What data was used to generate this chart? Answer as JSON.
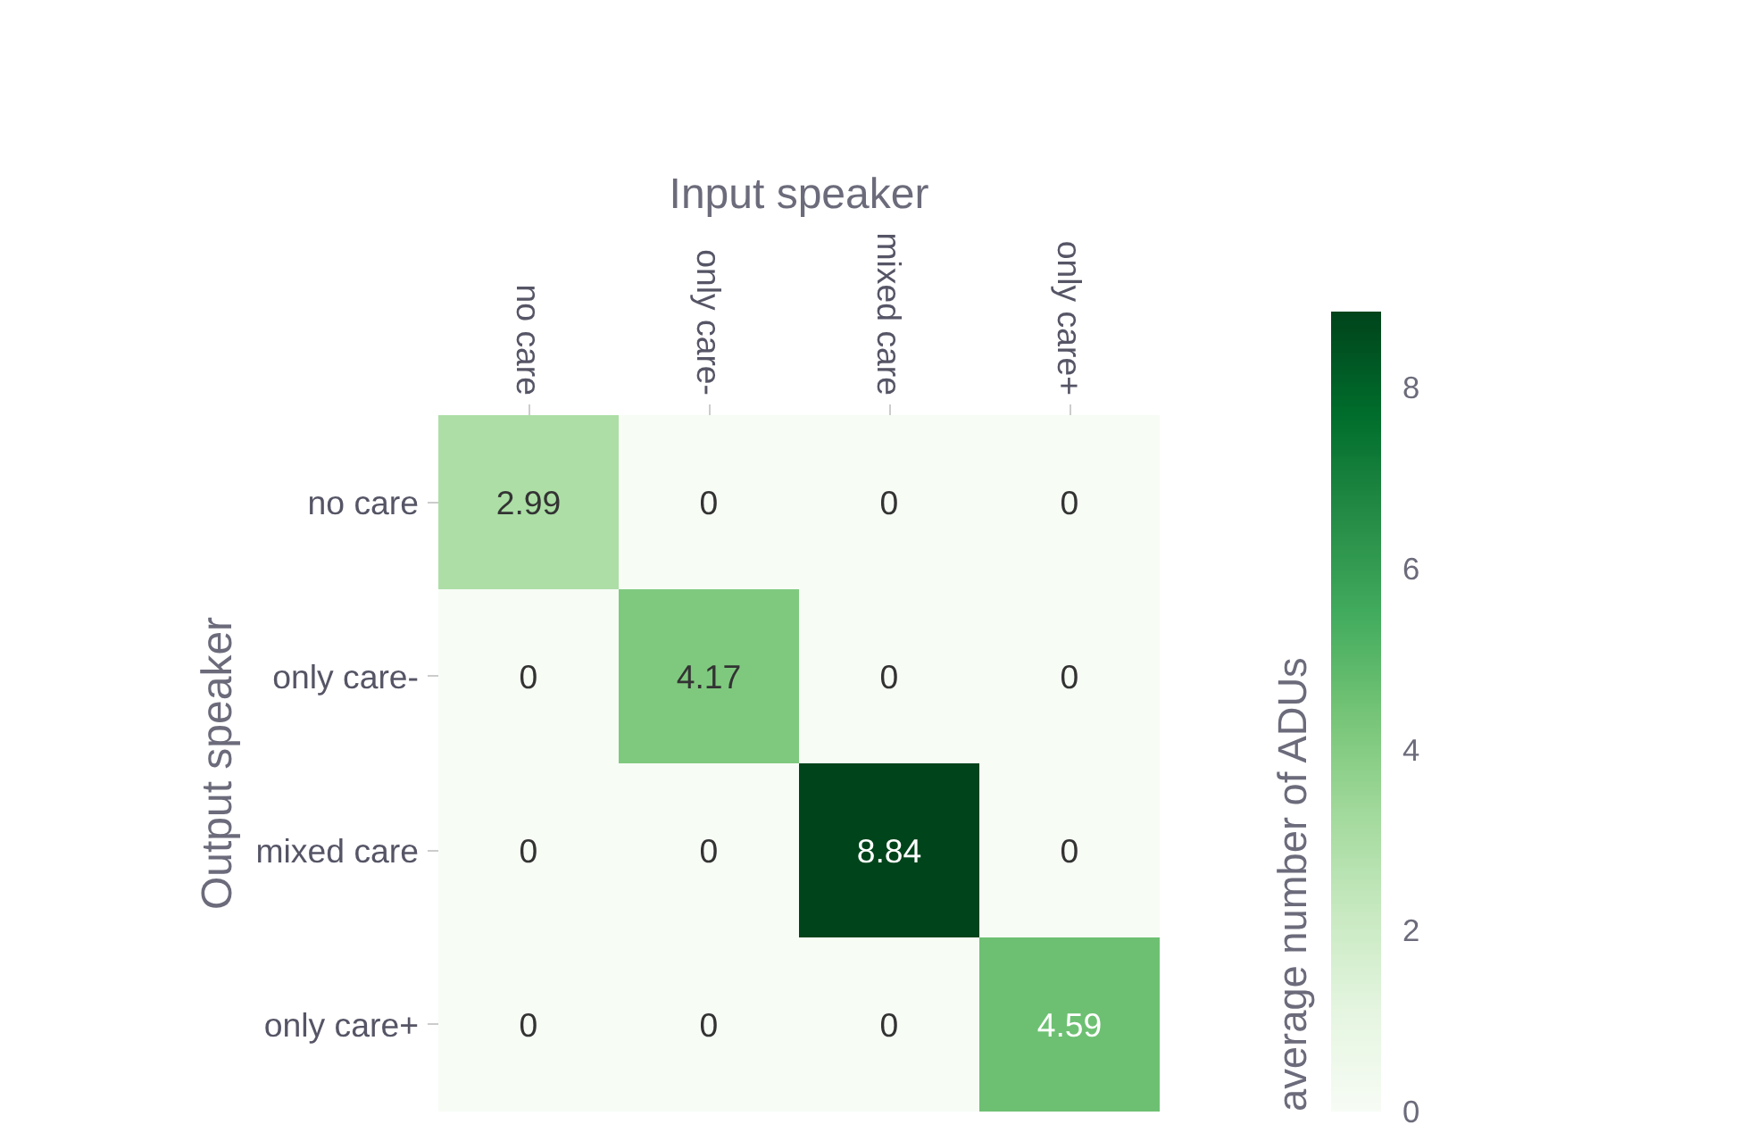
{
  "chart_data": {
    "type": "heatmap",
    "xlabel": "Input speaker",
    "ylabel": "Output speaker",
    "clabel": "average number of ADUs",
    "categories": [
      "no care",
      "only care-",
      "mixed care",
      "only care+"
    ],
    "y_categories": [
      "no care",
      "only care-",
      "mixed care",
      "only care+"
    ],
    "cells": [
      [
        2.99,
        0,
        0,
        0
      ],
      [
        0,
        4.17,
        0,
        0
      ],
      [
        0,
        0,
        8.84,
        0
      ],
      [
        0,
        0,
        0,
        4.59
      ]
    ],
    "clim": [
      0,
      8.84
    ],
    "cticks": [
      0,
      2,
      4,
      6,
      8
    ],
    "data_labels": true
  }
}
